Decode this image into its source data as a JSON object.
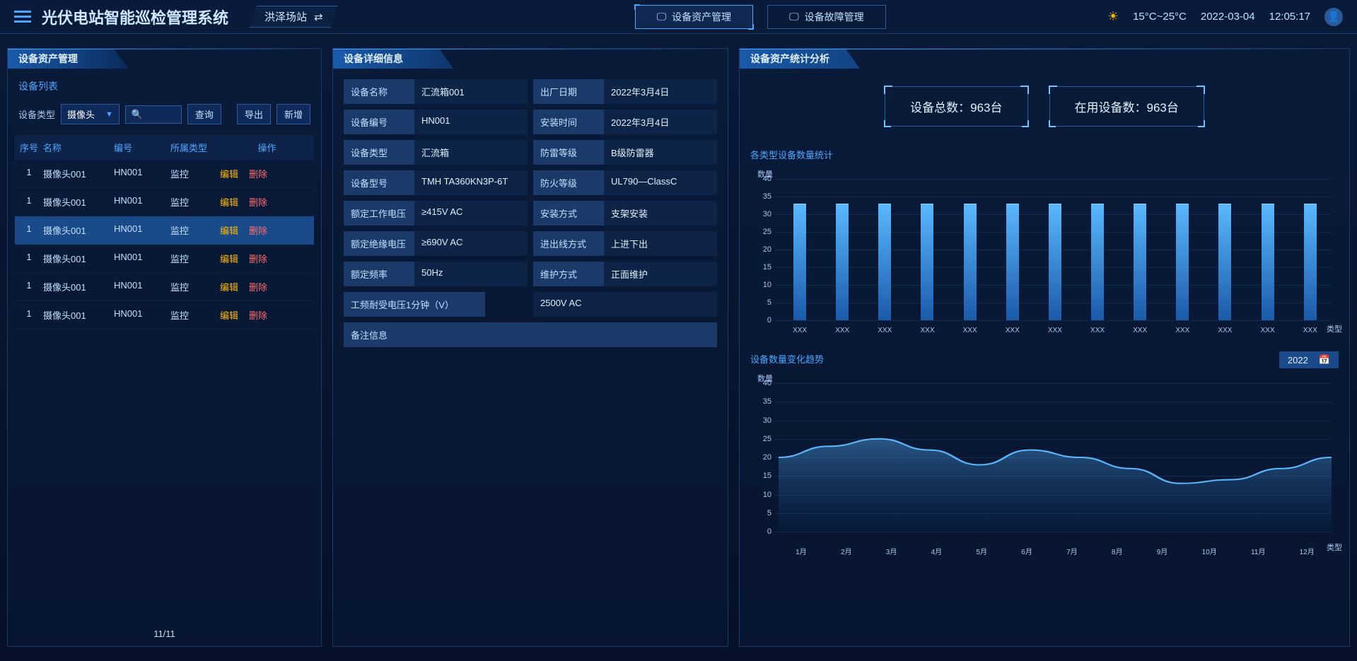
{
  "header": {
    "title": "光伏电站智能巡检管理系统",
    "station": "洪泽场站",
    "nav_tabs": [
      {
        "label": "设备资产管理",
        "active": true
      },
      {
        "label": "设备故障管理",
        "active": false
      }
    ],
    "temperature": "15°C~25°C",
    "date": "2022-03-04",
    "time": "12:05:17"
  },
  "left_panel": {
    "title": "设备资产管理",
    "sub_title": "设备列表",
    "filter_label": "设备类型",
    "filter_value": "摄像头",
    "btn_query": "查询",
    "btn_export": "导出",
    "btn_new": "新增",
    "columns": [
      "序号",
      "名称",
      "编号",
      "所属类型",
      "操作"
    ],
    "op_edit": "编辑",
    "op_delete": "删除",
    "rows": [
      {
        "seq": "1",
        "name": "摄像头001",
        "code": "HN001",
        "type": "监控",
        "active": false
      },
      {
        "seq": "1",
        "name": "摄像头001",
        "code": "HN001",
        "type": "监控",
        "active": false
      },
      {
        "seq": "1",
        "name": "摄像头001",
        "code": "HN001",
        "type": "监控",
        "active": true
      },
      {
        "seq": "1",
        "name": "摄像头001",
        "code": "HN001",
        "type": "监控",
        "active": false
      },
      {
        "seq": "1",
        "name": "摄像头001",
        "code": "HN001",
        "type": "监控",
        "active": false
      },
      {
        "seq": "1",
        "name": "摄像头001",
        "code": "HN001",
        "type": "监控",
        "active": false
      }
    ],
    "pagination": "11/11"
  },
  "mid_panel": {
    "title": "设备详细信息",
    "details": [
      [
        {
          "label": "设备名称",
          "value": "汇流箱001"
        },
        {
          "label": "出厂日期",
          "value": "2022年3月4日"
        }
      ],
      [
        {
          "label": "设备编号",
          "value": "HN001"
        },
        {
          "label": "安装时间",
          "value": "2022年3月4日"
        }
      ],
      [
        {
          "label": "设备类型",
          "value": "汇流箱"
        },
        {
          "label": "防雷等级",
          "value": "B级防雷器"
        }
      ],
      [
        {
          "label": "设备型号",
          "value": "TMH TA360KN3P-6T"
        },
        {
          "label": "防火等级",
          "value": "UL790—ClassC"
        }
      ],
      [
        {
          "label": "额定工作电压",
          "value": "≥415V AC"
        },
        {
          "label": "安装方式",
          "value": "支架安装"
        }
      ],
      [
        {
          "label": "额定绝缘电压",
          "value": "≥690V AC"
        },
        {
          "label": "进出线方式",
          "value": "上进下出"
        }
      ],
      [
        {
          "label": "额定频率",
          "value": "50Hz"
        },
        {
          "label": "维护方式",
          "value": "正面维护"
        }
      ]
    ],
    "wide_row": {
      "label": "工频耐受电压1分钟（V）",
      "value": "2500V AC"
    },
    "remark_label": "备注信息"
  },
  "right_panel": {
    "title": "设备资产统计分析",
    "stat_cards": [
      {
        "label": "设备总数：",
        "value": "963台"
      },
      {
        "label": "在用设备数：",
        "value": "963台"
      }
    ],
    "bar_chart": {
      "title": "各类型设备数量统计",
      "y_label": "数量",
      "x_label": "类型",
      "y_ticks": [
        0,
        5,
        10,
        15,
        20,
        25,
        30,
        35,
        40
      ],
      "y_max": 40,
      "categories": [
        "XXX",
        "XXX",
        "XXX",
        "XXX",
        "XXX",
        "XXX",
        "XXX",
        "XXX",
        "XXX",
        "XXX",
        "XXX",
        "XXX",
        "XXX"
      ],
      "values": [
        33,
        33,
        33,
        33,
        33,
        33,
        33,
        33,
        33,
        33,
        33,
        33,
        33
      ],
      "bar_color_top": "#5bb8ff",
      "bar_color_bottom": "#1a5aaa"
    },
    "line_chart": {
      "title": "设备数量变化趋势",
      "year": "2022",
      "y_label": "数量",
      "x_label": "类型",
      "y_ticks": [
        0,
        5,
        10,
        15,
        20,
        25,
        30,
        35,
        40
      ],
      "y_max": 40,
      "categories": [
        "1月",
        "2月",
        "3月",
        "4月",
        "5月",
        "6月",
        "7月",
        "8月",
        "9月",
        "10月",
        "11月",
        "12月"
      ],
      "values": [
        20,
        23,
        25,
        22,
        18,
        22,
        20,
        17,
        13,
        14,
        17,
        20
      ],
      "line_color": "#5bb8ff",
      "area_color_top": "rgba(91,184,255,0.4)",
      "area_color_bottom": "rgba(26,90,170,0.05)"
    }
  }
}
